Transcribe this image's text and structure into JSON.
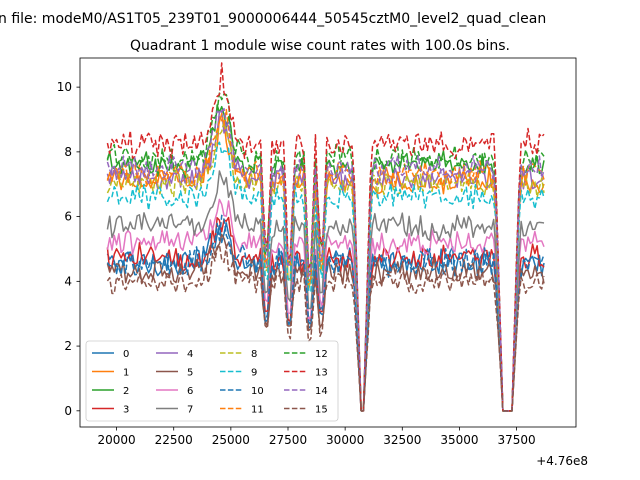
{
  "figure": {
    "suptitle": "n file: modeM0/AS1T05_239T01_9000006444_50545cztM0_level2_quad_clean"
  },
  "chart_data": {
    "type": "line",
    "title": "Quadrant 1 module wise count rates with 100.0s bins.",
    "xlabel": "",
    "ylabel": "",
    "x_offset_label": "+4.76e8",
    "xlim": [
      18400,
      40100
    ],
    "ylim": [
      -0.5,
      10.9
    ],
    "x_ticks": [
      20000,
      22500,
      25000,
      27500,
      30000,
      32500,
      35000,
      37500
    ],
    "x_tick_labels": [
      "20000",
      "22500",
      "25000",
      "27500",
      "30000",
      "32500",
      "35000",
      "37500"
    ],
    "y_ticks": [
      0,
      2,
      4,
      6,
      8,
      10
    ],
    "y_tick_labels": [
      "0",
      "2",
      "4",
      "6",
      "8",
      "10"
    ],
    "x_start": 19600,
    "x_step": 100,
    "n_points": 192,
    "dips": [
      {
        "at": 26550,
        "depth": 0.45
      },
      {
        "at": 27550,
        "depth": 0.5
      },
      {
        "at": 28450,
        "depth": 0.55
      },
      {
        "at": 28950,
        "depth": 0.45
      }
    ],
    "zero_gaps": [
      [
        30650,
        30850
      ],
      [
        36850,
        37350
      ]
    ],
    "legend_position": "lower-left",
    "series": [
      {
        "name": "0",
        "base": 4.6,
        "amp": 0.35,
        "color": "#1f77b4",
        "dash": "solid"
      },
      {
        "name": "1",
        "base": 7.1,
        "amp": 0.3,
        "color": "#ff7f0e",
        "dash": "solid"
      },
      {
        "name": "2",
        "base": 7.6,
        "amp": 0.3,
        "color": "#2ca02c",
        "dash": "solid"
      },
      {
        "name": "3",
        "base": 4.7,
        "amp": 0.35,
        "color": "#d62728",
        "dash": "solid"
      },
      {
        "name": "4",
        "base": 7.2,
        "amp": 0.3,
        "color": "#9467bd",
        "dash": "solid"
      },
      {
        "name": "5",
        "base": 4.3,
        "amp": 0.3,
        "color": "#8c564b",
        "dash": "solid"
      },
      {
        "name": "6",
        "base": 5.2,
        "amp": 0.3,
        "color": "#e377c2",
        "dash": "solid"
      },
      {
        "name": "7",
        "base": 5.7,
        "amp": 0.3,
        "color": "#7f7f7f",
        "dash": "solid"
      },
      {
        "name": "8",
        "base": 7.0,
        "amp": 0.3,
        "color": "#bcbd22",
        "dash": "dashed"
      },
      {
        "name": "9",
        "base": 6.6,
        "amp": 0.3,
        "color": "#17becf",
        "dash": "dashed"
      },
      {
        "name": "10",
        "base": 4.6,
        "amp": 0.35,
        "color": "#1f77b4",
        "dash": "dashed"
      },
      {
        "name": "11",
        "base": 7.3,
        "amp": 0.3,
        "color": "#ff7f0e",
        "dash": "dashed"
      },
      {
        "name": "12",
        "base": 7.8,
        "amp": 0.3,
        "color": "#2ca02c",
        "dash": "dashed"
      },
      {
        "name": "13",
        "base": 8.2,
        "amp": 0.35,
        "color": "#d62728",
        "dash": "dashed"
      },
      {
        "name": "14",
        "base": 7.5,
        "amp": 0.3,
        "color": "#9467bd",
        "dash": "dashed"
      },
      {
        "name": "15",
        "base": 4.0,
        "amp": 0.3,
        "color": "#8c564b",
        "dash": "dashed"
      }
    ]
  }
}
